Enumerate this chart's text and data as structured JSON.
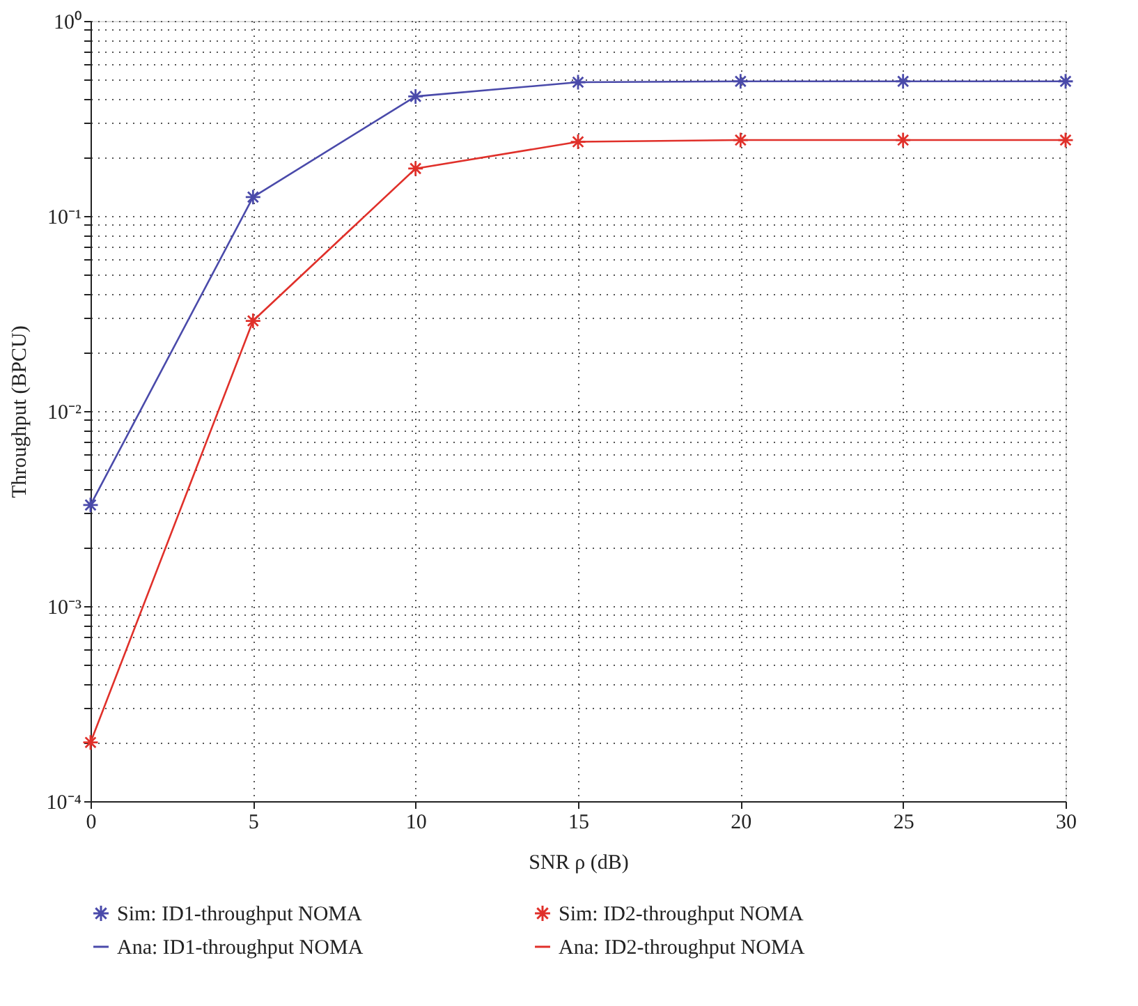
{
  "chart_data": {
    "type": "line",
    "xlabel": "SNR ρ (dB)",
    "ylabel": "Throughput (BPCU)",
    "x": [
      0,
      5,
      10,
      15,
      20,
      25,
      30
    ],
    "series": [
      {
        "name": "Sim: ID1-throughput NOMA",
        "type": "scatter",
        "marker": "cross",
        "color": "#4a4aaa",
        "values": [
          0.0033,
          0.125,
          0.41,
          0.485,
          0.49,
          0.49,
          0.49
        ]
      },
      {
        "name": "Sim: ID2-throughput NOMA",
        "type": "scatter",
        "marker": "cross",
        "color": "#e0302a",
        "values": [
          0.0002,
          0.029,
          0.175,
          0.24,
          0.245,
          0.245,
          0.245
        ]
      },
      {
        "name": "Ana: ID1-throughput NOMA",
        "marker": "none",
        "color": "#4a4aaa",
        "values": [
          0.0033,
          0.125,
          0.41,
          0.485,
          0.49,
          0.49,
          0.49
        ]
      },
      {
        "name": "Ana: ID2-throughput NOMA",
        "marker": "none",
        "color": "#e0302a",
        "values": [
          0.0002,
          0.029,
          0.175,
          0.24,
          0.245,
          0.245,
          0.245
        ]
      }
    ],
    "log": true,
    "xlim": [
      0,
      30
    ],
    "xticks": [
      0,
      5,
      10,
      15,
      20,
      25,
      30
    ],
    "ylim": [
      0.0001,
      1
    ],
    "yticks": [
      {
        "value": 0.0001,
        "label": "10⁻⁴"
      },
      {
        "value": 0.0002,
        "label": null
      },
      {
        "value": 0.0003,
        "label": null
      },
      {
        "value": 0.0004,
        "label": null
      },
      {
        "value": 0.0005,
        "label": null
      },
      {
        "value": 0.0006,
        "label": null
      },
      {
        "value": 0.0007,
        "label": null
      },
      {
        "value": 0.0008,
        "label": null
      },
      {
        "value": 0.0009,
        "label": null
      },
      {
        "value": 0.001,
        "label": "10⁻³"
      },
      {
        "value": 0.002,
        "label": null
      },
      {
        "value": 0.003,
        "label": null
      },
      {
        "value": 0.004,
        "label": null
      },
      {
        "value": 0.005,
        "label": null
      },
      {
        "value": 0.006,
        "label": null
      },
      {
        "value": 0.007,
        "label": null
      },
      {
        "value": 0.008,
        "label": null
      },
      {
        "value": 0.009,
        "label": null
      },
      {
        "value": 0.01,
        "label": "10⁻²"
      },
      {
        "value": 0.02,
        "label": null
      },
      {
        "value": 0.03,
        "label": null
      },
      {
        "value": 0.04,
        "label": null
      },
      {
        "value": 0.05,
        "label": null
      },
      {
        "value": 0.06,
        "label": null
      },
      {
        "value": 0.07,
        "label": null
      },
      {
        "value": 0.08,
        "label": null
      },
      {
        "value": 0.09,
        "label": null
      },
      {
        "value": 0.1,
        "label": "10⁻¹"
      },
      {
        "value": 0.2,
        "label": null
      },
      {
        "value": 0.3,
        "label": null
      },
      {
        "value": 0.4,
        "label": null
      },
      {
        "value": 0.5,
        "label": null
      },
      {
        "value": 0.6,
        "label": null
      },
      {
        "value": 0.7,
        "label": null
      },
      {
        "value": 0.8,
        "label": null
      },
      {
        "value": 0.9,
        "label": null
      },
      {
        "value": 1,
        "label": "10⁰"
      }
    ],
    "grid": true,
    "legend": "bottom",
    "line_style": "solid"
  }
}
